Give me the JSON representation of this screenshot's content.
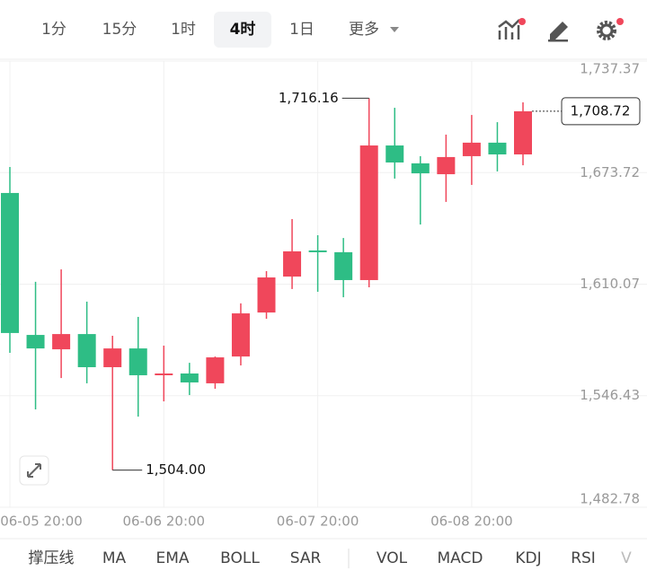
{
  "toolbar": {
    "intervals": [
      "1分",
      "15分",
      "1时",
      "4时",
      "1日"
    ],
    "selected": "4时",
    "more": "更多"
  },
  "chart_data": {
    "type": "candlestick",
    "categories": [
      "06-05 20:00",
      null,
      null,
      null,
      null,
      null,
      "06-06 20:00",
      null,
      null,
      null,
      null,
      null,
      "06-07 20:00",
      null,
      null,
      null,
      null,
      null,
      "06-08 20:00",
      null,
      null
    ],
    "open": [
      1662.1,
      1581.1,
      1572.9,
      1581.6,
      1562.7,
      1573.4,
      1558.1,
      1559.1,
      1553.5,
      1568.8,
      1593.9,
      1614.4,
      1629.3,
      1628.3,
      1612.4,
      1689.2,
      1679.0,
      1672.8,
      1683.1,
      1690.8,
      1684.1
    ],
    "high": [
      1676.9,
      1611.4,
      1618.5,
      1600.1,
      1580.6,
      1591.4,
      1575.0,
      1565.2,
      1568.8,
      1599.1,
      1617.5,
      1647.2,
      1638.0,
      1636.4,
      1716.16,
      1710.7,
      1683.1,
      1695.4,
      1706.6,
      1702.5,
      1713.8
    ],
    "low": [
      1570.9,
      1538.6,
      1556.5,
      1553.5,
      1504.0,
      1534.5,
      1543.2,
      1546.8,
      1550.4,
      1563.7,
      1590.3,
      1607.3,
      1605.7,
      1602.6,
      1608.3,
      1670.3,
      1644.1,
      1657.0,
      1666.7,
      1674.4,
      1677.9
    ],
    "close": [
      1582.2,
      1573.4,
      1581.6,
      1562.7,
      1573.4,
      1558.1,
      1559.1,
      1554.0,
      1568.3,
      1593.4,
      1613.9,
      1628.8,
      1628.3,
      1612.4,
      1689.2,
      1679.5,
      1673.3,
      1682.6,
      1690.8,
      1684.1,
      1708.72
    ],
    "up_color": "#f0475b",
    "down_color": "#2ebd85",
    "ylim": [
      1482.78,
      1737.37
    ],
    "yticks": [
      {
        "value": 1737.37,
        "label": "1,737.37"
      },
      {
        "value": 1673.72,
        "label": "1,673.72"
      },
      {
        "value": 1610.07,
        "label": "1,610.07"
      },
      {
        "value": 1546.43,
        "label": "1,546.43"
      },
      {
        "value": 1482.78,
        "label": "1,482.78"
      }
    ],
    "grid": true,
    "annotations": [
      {
        "label": "1,716.16",
        "value": 1716.16
      },
      {
        "label": "1,504.00",
        "value": 1504.0
      }
    ],
    "last_price": {
      "label": "1,708.72",
      "value": 1708.72
    }
  },
  "indicators": [
    "撑压线",
    "MA",
    "EMA",
    "BOLL",
    "SAR",
    "VOL",
    "MACD",
    "KDJ",
    "RSI",
    "V"
  ]
}
